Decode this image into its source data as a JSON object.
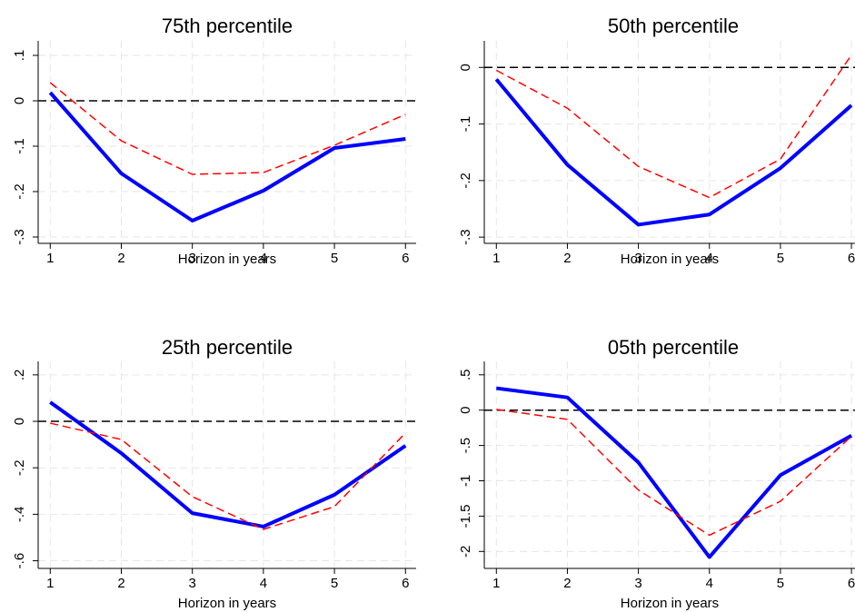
{
  "chart_data": [
    {
      "type": "line",
      "title": "75th percentile",
      "x_label": "Horizon in years",
      "x": [
        1,
        2,
        3,
        4,
        5,
        6
      ],
      "xlim": [
        0.83,
        6.15
      ],
      "xticks": [
        1,
        2,
        3,
        4,
        5,
        6
      ],
      "ylim": [
        -0.314,
        0.132
      ],
      "yticks": [
        {
          "value": -0.3,
          "label": "-.3"
        },
        {
          "value": -0.2,
          "label": "-.2"
        },
        {
          "value": -0.1,
          "label": "-.1"
        },
        0,
        {
          "value": 0.1,
          "label": ".1"
        }
      ],
      "grid": true,
      "hline": 0,
      "series": [
        {
          "color": "#0000ff",
          "style": "solid",
          "values": [
            0.018,
            -0.16,
            -0.264,
            -0.198,
            -0.104,
            -0.084
          ]
        },
        {
          "color": "#ff0000",
          "style": "dashed",
          "values": [
            0.04,
            -0.088,
            -0.162,
            -0.158,
            -0.098,
            -0.03
          ]
        }
      ]
    },
    {
      "type": "line",
      "title": "50th percentile",
      "x_label": "Horizon in years",
      "x": [
        1,
        2,
        3,
        4,
        5,
        6
      ],
      "xlim": [
        0.83,
        6.05
      ],
      "xticks": [
        1,
        2,
        3,
        4,
        5,
        6
      ],
      "ylim": [
        -0.311,
        0.047
      ],
      "yticks": [
        {
          "value": -0.3,
          "label": "-.3"
        },
        {
          "value": -0.2,
          "label": "-.2"
        },
        {
          "value": -0.1,
          "label": "-.1"
        },
        0
      ],
      "grid": true,
      "hline": 0,
      "series": [
        {
          "color": "#0000ff",
          "style": "solid",
          "values": [
            -0.021,
            -0.172,
            -0.278,
            -0.26,
            -0.178,
            -0.067
          ]
        },
        {
          "color": "#ff0000",
          "style": "dashed",
          "values": [
            -0.005,
            -0.072,
            -0.175,
            -0.23,
            -0.162,
            0.022
          ]
        }
      ]
    },
    {
      "type": "line",
      "title": "25th percentile",
      "x_label": "Horizon in years",
      "x": [
        1,
        2,
        3,
        4,
        5,
        6
      ],
      "xlim": [
        0.83,
        6.15
      ],
      "xticks": [
        1,
        2,
        3,
        4,
        5,
        6
      ],
      "ylim": [
        -0.633,
        0.258
      ],
      "yticks": [
        {
          "value": -0.6,
          "label": "-.6"
        },
        {
          "value": -0.4,
          "label": "-.4"
        },
        {
          "value": -0.2,
          "label": "-.2"
        },
        0,
        {
          "value": 0.2,
          "label": ".2"
        }
      ],
      "grid": true,
      "hline": 0,
      "series": [
        {
          "color": "#0000ff",
          "style": "solid",
          "values": [
            0.082,
            -0.137,
            -0.395,
            -0.453,
            -0.316,
            -0.105
          ]
        },
        {
          "color": "#ff0000",
          "style": "dashed",
          "values": [
            -0.008,
            -0.078,
            -0.324,
            -0.465,
            -0.367,
            -0.05
          ]
        }
      ]
    },
    {
      "type": "line",
      "title": "05th percentile",
      "x_label": "Horizon in years",
      "x": [
        1,
        2,
        3,
        4,
        5,
        6
      ],
      "xlim": [
        0.83,
        6.05
      ],
      "xticks": [
        1,
        2,
        3,
        4,
        5,
        6
      ],
      "ylim": [
        -2.24,
        0.69
      ],
      "yticks": [
        -2,
        -1.5,
        -1,
        {
          "value": -0.5,
          "label": "-.5"
        },
        0,
        {
          "value": 0.5,
          "label": ".5"
        }
      ],
      "grid": true,
      "hline": 0,
      "series": [
        {
          "color": "#0000ff",
          "style": "solid",
          "values": [
            0.31,
            0.18,
            -0.74,
            -2.08,
            -0.92,
            -0.36
          ]
        },
        {
          "color": "#ff0000",
          "style": "dashed",
          "values": [
            0.01,
            -0.13,
            -1.13,
            -1.77,
            -1.29,
            -0.37
          ]
        }
      ]
    }
  ]
}
